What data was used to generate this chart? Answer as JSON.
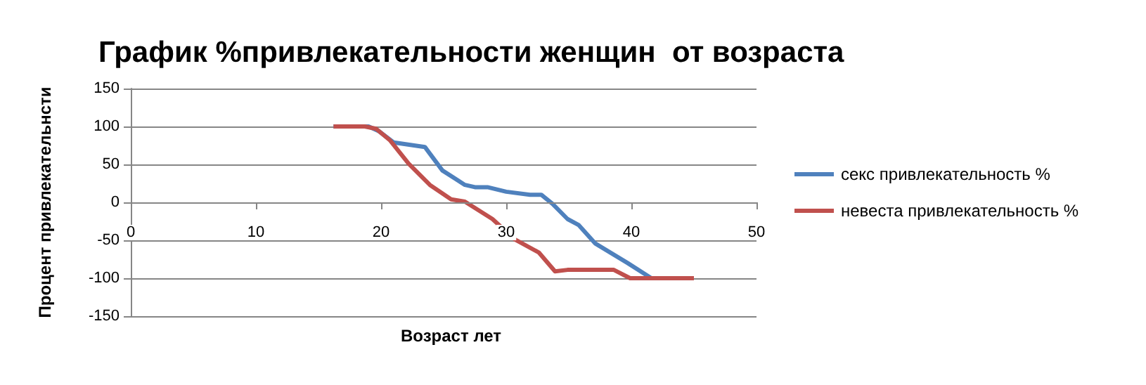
{
  "chart_data": {
    "type": "line",
    "title": "График %привлекательности женщин  от возраста",
    "xlabel": "Возраст лет",
    "ylabel": "Процент привлекательнсти",
    "xlim": [
      0,
      50
    ],
    "xticks": [
      0,
      10,
      20,
      30,
      40,
      50
    ],
    "ylim": [
      -150,
      150
    ],
    "yticks": [
      -150,
      -100,
      -50,
      0,
      50,
      100,
      150
    ],
    "grid": "y",
    "legend": "right",
    "marker": "none",
    "line_style": "solid",
    "series": [
      {
        "name": "секс привлекательность %",
        "color": "#4f81bd",
        "x": [
          16.2,
          19,
          19.8,
          21,
          23.5,
          24.9,
          26.7,
          27.5,
          28.5,
          30,
          31.9,
          32.8,
          33.7,
          34.9,
          35.8,
          37.1,
          39.7,
          41.6
        ],
        "values": [
          100,
          100,
          94,
          79,
          73,
          42,
          23,
          20,
          20,
          14,
          10,
          10,
          -2,
          -22,
          -30,
          -54,
          -80,
          -100
        ]
      },
      {
        "name": "невеста привлекательность %",
        "color": "#c0504d",
        "x": [
          16.2,
          18.7,
          19.6,
          20.7,
          22.2,
          23.9,
          25.6,
          26.7,
          28.9,
          30.7,
          32.6,
          33.9,
          34.9,
          38.6,
          39.9,
          45
        ],
        "values": [
          100,
          100,
          97,
          82,
          51,
          23,
          4,
          1,
          -22,
          -49,
          -66,
          -91,
          -89,
          -89,
          -100,
          -100
        ]
      }
    ]
  }
}
